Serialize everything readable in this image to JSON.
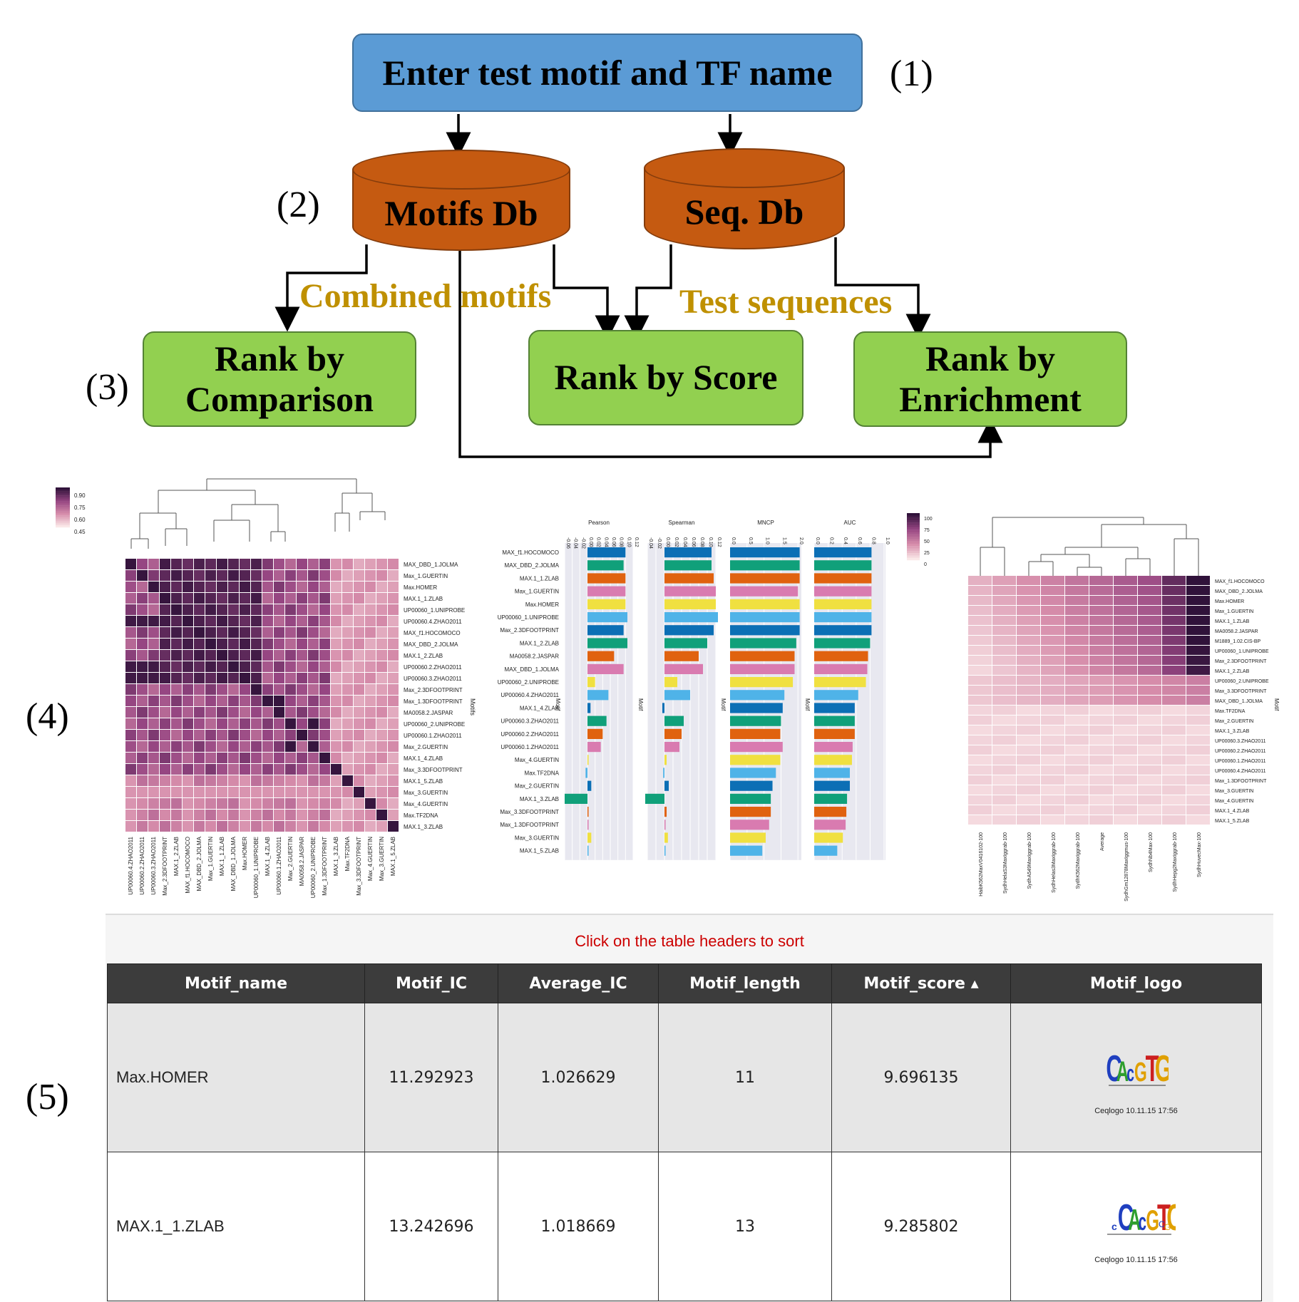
{
  "flow": {
    "enter_box": "Enter test motif and TF name",
    "motifs_db": "Motifs Db",
    "seq_db": "Seq. Db",
    "combined_motifs": "Combined motifs",
    "test_sequences": "Test sequences",
    "rank_comparison_line1": "Rank by",
    "rank_comparison_line2": "Comparison",
    "rank_score": "Rank by Score",
    "rank_enrichment_line1": "Rank by",
    "rank_enrichment_line2": "Enrichment",
    "step1": "(1)",
    "step2": "(2)",
    "step3": "(3)",
    "step4": "(4)",
    "step5": "(5)",
    "colors": {
      "blue": "#5b9bd5",
      "orange": "#c55a11",
      "green": "#92d050",
      "gold": "#bf9000"
    }
  },
  "heatmap1": {
    "legend": [
      "0.90",
      "0.75",
      "0.60",
      "0.45"
    ],
    "axis_title": "Motifs",
    "rows": [
      "MAX_DBD_1.JOLMA",
      "Max_1.GUERTIN",
      "Max.HOMER",
      "MAX.1_1.ZLAB",
      "UP00060_1.UNIPROBE",
      "UP00060.4.ZHAO2011",
      "MAX_f1.HOCOMOCO",
      "MAX_DBD_2.JOLMA",
      "MAX.1_2.ZLAB",
      "UP00060.2.ZHAO2011",
      "UP00060.3.ZHAO2011",
      "Max_2.3DFOOTPRINT",
      "Max_1.3DFOOTPRINT",
      "MA0058.2.JASPAR",
      "UP00060_2.UNIPROBE",
      "UP00060.1.ZHAO2011",
      "Max_2.GUERTIN",
      "MAX.1_4.ZLAB",
      "Max_3.3DFOOTPRINT",
      "MAX.1_5.ZLAB",
      "Max_3.GUERTIN",
      "Max_4.GUERTIN",
      "Max.TF2DNA",
      "MAX.1_3.ZLAB"
    ],
    "cols": [
      "UP00060.4.ZHAO2011",
      "UP00060.2.ZHAO2011",
      "UP00060.3.ZHAO2011",
      "Max_2.3DFOOTPRINT",
      "MAX.1_2.ZLAB",
      "MAX_f1.HOCOMOCO",
      "MAX_DBD_2.JOLMA",
      "Max_1.GUERTIN",
      "MAX.1_1.ZLAB",
      "MAX_DBD_1.JOLMA",
      "Max.HOMER",
      "UP00060_1.UNIPROBE",
      "MAX.1_4.ZLAB",
      "UP00060.1.ZHAO2011",
      "Max_2.GUERTIN",
      "MA0058.2.JASPAR",
      "UP00060_2.UNIPROBE",
      "Max_1.3DFOOTPRINT",
      "MAX.1_3.ZLAB",
      "Max.TF2DNA",
      "Max_3.3DFOOTPRINT",
      "Max_4.GUERTIN",
      "Max_3.GUERTIN",
      "MAX.1_5.ZLAB"
    ]
  },
  "barchart": {
    "panels": [
      "Pearson",
      "Spearman",
      "MNCP",
      "AUC"
    ],
    "ticks": {
      "Pearson": [
        "-0.06",
        "-0.04",
        "-0.02",
        "0.00",
        "0.02",
        "0.04",
        "0.06",
        "0.08",
        "0.10",
        "0.12"
      ],
      "Spearman": [
        "-0.04",
        "-0.02",
        "0.00",
        "0.02",
        "0.04",
        "0.06",
        "0.08",
        "0.10",
        "0.12"
      ],
      "MNCP": [
        "0.0",
        "0.5",
        "1.0",
        "1.5",
        "2.0"
      ],
      "AUC": [
        "0.0",
        "0.2",
        "0.4",
        "0.6",
        "0.8",
        "1.0"
      ]
    },
    "legend": [
      "100",
      "75",
      "50",
      "25",
      "0"
    ],
    "axis_title": "Motif",
    "rows": [
      "MAX_f1.HOCOMOCO",
      "MAX_DBD_2.JOLMA",
      "MAX.1_1.ZLAB",
      "Max_1.GUERTIN",
      "Max.HOMER",
      "UP00060_1.UNIPROBE",
      "Max_2.3DFOOTPRINT",
      "MAX.1_2.ZLAB",
      "MA0058.2.JASPAR",
      "MAX_DBD_1.JOLMA",
      "UP00060_2.UNIPROBE",
      "UP00060.4.ZHAO2011",
      "MAX.1_4.ZLAB",
      "UP00060.3.ZHAO2011",
      "UP00060.2.ZHAO2011",
      "UP00060.1.ZHAO2011",
      "Max_4.GUERTIN",
      "Max.TF2DNA",
      "Max_2.GUERTIN",
      "MAX.1_3.ZLAB",
      "Max_3.3DFOOTPRINT",
      "Max_1.3DFOOTPRINT",
      "Max_3.GUERTIN",
      "MAX.1_5.ZLAB"
    ],
    "pearson": [
      0.1,
      0.095,
      0.1,
      0.1,
      0.1,
      0.105,
      0.095,
      0.105,
      0.07,
      0.095,
      0.02,
      0.055,
      0.008,
      0.05,
      0.04,
      0.035,
      0.002,
      -0.005,
      0.01,
      -0.06,
      0.002,
      0.001,
      0.01,
      0.002
    ],
    "spearman": [
      0.11,
      0.11,
      0.115,
      0.12,
      0.12,
      0.125,
      0.115,
      0.1,
      0.08,
      0.09,
      0.03,
      0.06,
      -0.005,
      0.045,
      0.04,
      0.035,
      0.005,
      -0.003,
      0.01,
      -0.045,
      0.005,
      0.0,
      0.008,
      0.002
    ],
    "mncp": [
      2.05,
      2.05,
      2.05,
      2.0,
      2.05,
      2.05,
      2.05,
      1.95,
      1.9,
      1.9,
      1.85,
      1.6,
      1.55,
      1.5,
      1.48,
      1.55,
      1.48,
      1.35,
      1.25,
      1.2,
      1.2,
      1.15,
      1.05,
      0.95
    ],
    "auc": [
      0.82,
      0.82,
      0.82,
      0.82,
      0.82,
      0.82,
      0.82,
      0.8,
      0.77,
      0.76,
      0.74,
      0.63,
      0.58,
      0.58,
      0.58,
      0.55,
      0.54,
      0.51,
      0.51,
      0.47,
      0.46,
      0.45,
      0.41,
      0.33
    ],
    "colors": [
      "#0c6fb5",
      "#10a07a",
      "#e0620f",
      "#d97bb0",
      "#f0e040",
      "#4fb3e8"
    ]
  },
  "heatmap2": {
    "axis_title": "Motif",
    "rows": [
      "MAX_f1.HOCOMOCO",
      "MAX_DBD_2.JOLMA",
      "Max.HOMER",
      "Max_1.GUERTIN",
      "MAX.1_1.ZLAB",
      "MA0058.2.JASPAR",
      "M1889_1.02.CIS-BP",
      "UP00060_1.UNIPROBE",
      "Max_2.3DFOOTPRINT",
      "MAX.1_2.ZLAB",
      "UP00060_2.UNIPROBE",
      "Max_3.3DFOOTPRINT",
      "MAX_DBD_1.JOLMA",
      "Max.TF2DNA",
      "Max_2.GUERTIN",
      "MAX.1_3.ZLAB",
      "UP00060.3.ZHAO2011",
      "UP00060.2.ZHAO2011",
      "UP00060.1.ZHAO2011",
      "UP00060.4.ZHAO2011",
      "Max_1.3DFOOTPRINT",
      "Max_3.GUERTIN",
      "Max_4.GUERTIN",
      "MAX.1_4.ZLAB",
      "MAX.1_5.ZLAB"
    ],
    "cols": [
      "HaibK562MaxV0416102-100",
      "SydhHelaS3MaxIggrab-100",
      "SydhA549MaxIggrab-100",
      "SydhHelas3MaxIggrab-100",
      "SydhK562MaxIggrab-100",
      "Average",
      "SydhGm12878MaxIggmus-100",
      "SydhNb4Max-100",
      "SydhHepg2MaxIggrab-100",
      "SydhHuvecMax-100"
    ]
  },
  "table": {
    "hint": "Click on the table headers to sort",
    "headers": [
      "Motif_name",
      "Motif_IC",
      "Average_IC",
      "Motif_length",
      "Motif_score ▴",
      "Motif_logo"
    ],
    "rows": [
      {
        "name": "Max.HOMER",
        "ic": "11.292923",
        "avg_ic": "1.026629",
        "length": "11",
        "score": "9.696135",
        "logo_caption": "Ceqlogo 10.11.15 17:56"
      },
      {
        "name": "MAX.1_1.ZLAB",
        "ic": "13.242696",
        "avg_ic": "1.018669",
        "length": "13",
        "score": "9.285802",
        "logo_caption": "Ceqlogo 10.11.15 17:56"
      }
    ]
  }
}
